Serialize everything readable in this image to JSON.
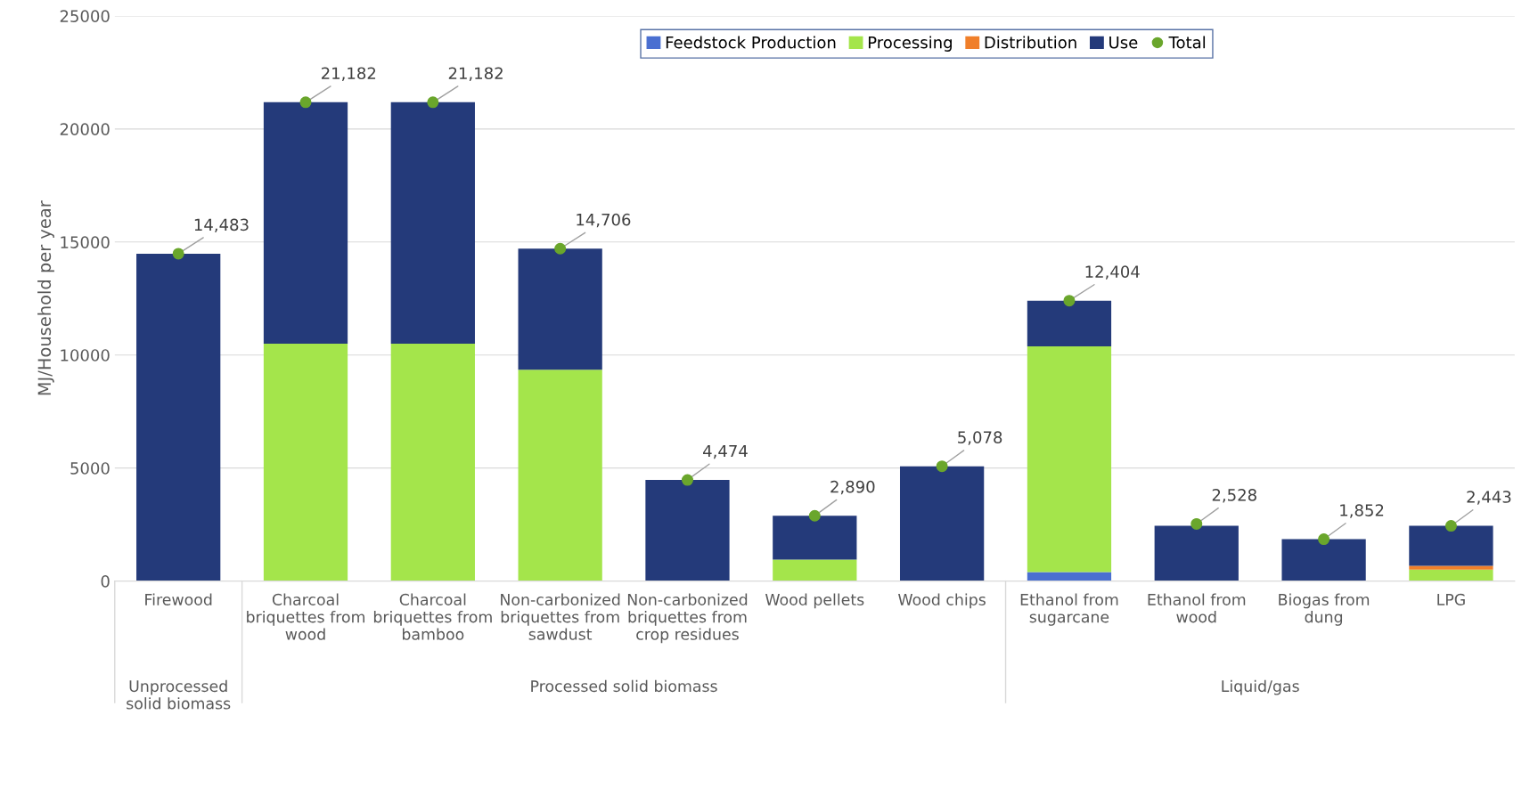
{
  "chart_data": {
    "type": "bar",
    "stacked": true,
    "ylabel": "MJ/Household per year",
    "categories": [
      "Firewood",
      "Charcoal\nbriquettes from\nwood",
      "Charcoal\nbriquettes from\nbamboo",
      "Non-carbonized\nbriquettes from\nsawdust",
      "Non-carbonized\nbriquettes from\ncrop residues",
      "Wood pellets",
      "Wood chips",
      "Ethanol from\nsugarcane",
      "Ethanol from\nwood",
      "Biogas from\ndung",
      "LPG"
    ],
    "series": [
      {
        "name": "Feedstock Production",
        "color": "#4a6fd1",
        "values": [
          0,
          0,
          0,
          0,
          0,
          0,
          0,
          400,
          0,
          0,
          0
        ]
      },
      {
        "name": "Processing",
        "color": "#a4e54b",
        "values": [
          0,
          10500,
          10500,
          9350,
          0,
          950,
          0,
          9980,
          null,
          0,
          510
        ]
      },
      {
        "name": "Distribution",
        "color": "#f07f2a",
        "values": [
          0,
          0,
          0,
          0,
          0,
          0,
          0,
          0,
          0,
          0,
          160
        ]
      },
      {
        "name": "Use",
        "color": "#243a7a",
        "values": [
          14483,
          10682,
          10682,
          5356,
          4474,
          1940,
          5078,
          2024,
          2448,
          1852,
          1773
        ]
      },
      {
        "name": "Total",
        "type": "scatter",
        "color": "#6aa62c",
        "values": [
          14483,
          21182,
          21182,
          14706,
          4474,
          2890,
          5078,
          12404,
          2528,
          1852,
          2443
        ],
        "value_labels": [
          "14,483",
          "21,182",
          "21,182",
          "14,706",
          "4,474",
          "2,890",
          "5,078",
          "12,404",
          "2,528",
          "1,852",
          "2,443"
        ]
      }
    ],
    "annotations": [
      "Unprocessed\nsolid biomass",
      "Processed solid biomass",
      "Liquid/gas"
    ],
    "ylim": [
      0,
      25000
    ],
    "yticks": [
      0,
      5000,
      10000,
      15000,
      20000,
      25000
    ],
    "grid": "y",
    "legend": "top",
    "marker": "circle"
  }
}
